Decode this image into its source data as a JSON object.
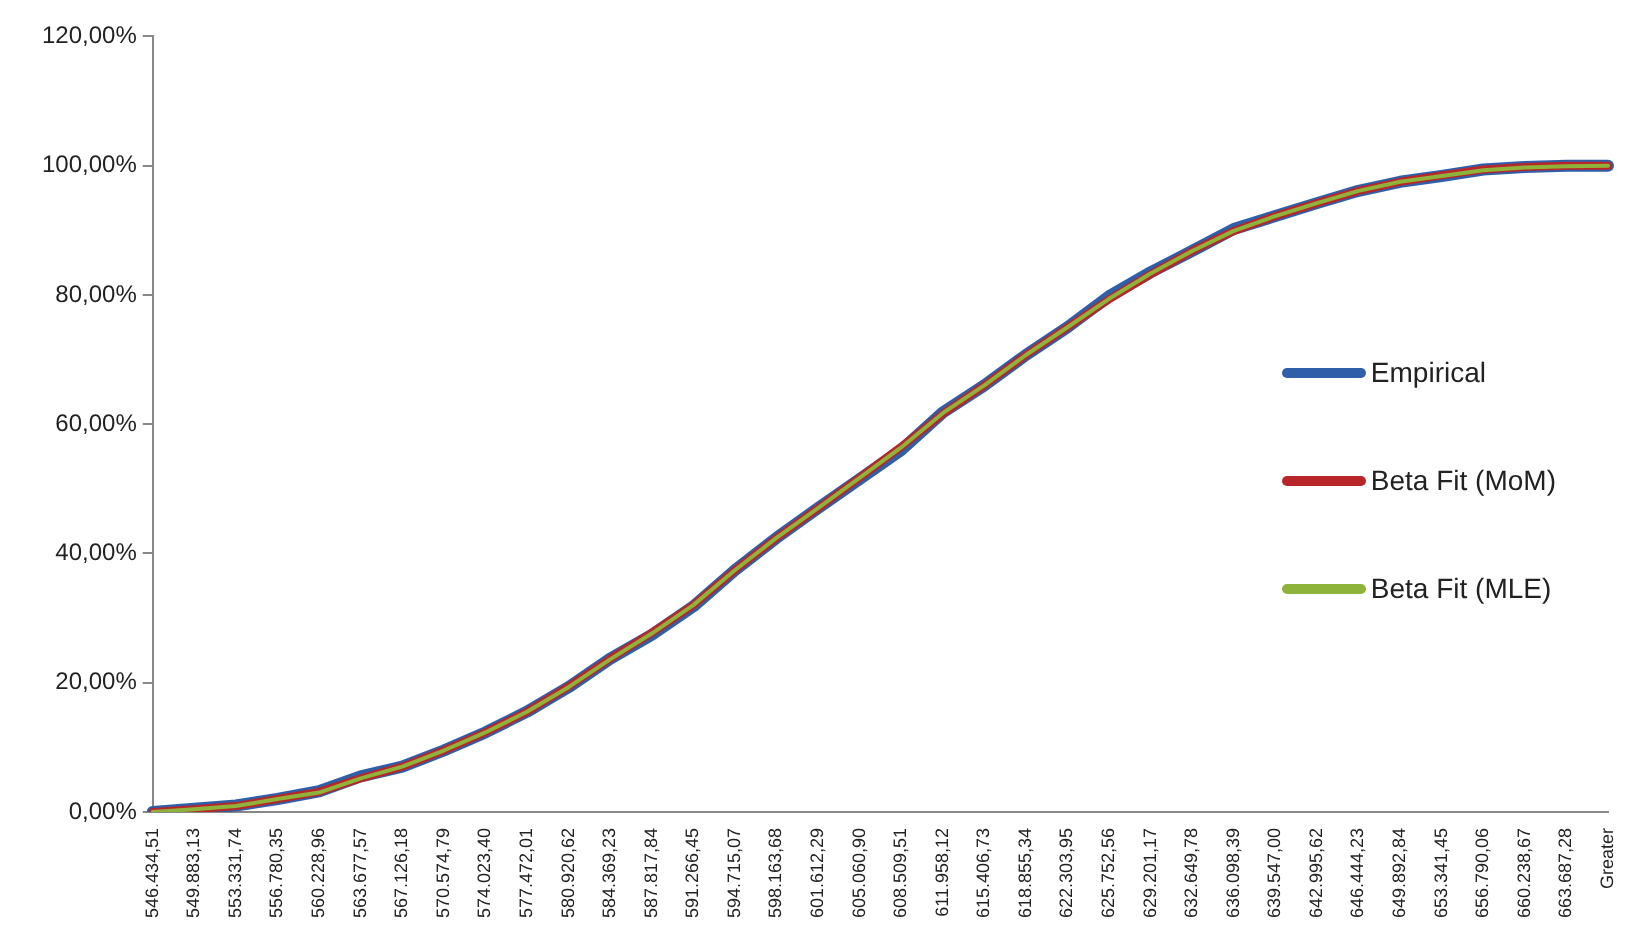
{
  "chart_data": {
    "type": "line",
    "categories": [
      "546.434,51",
      "549.883,13",
      "553.331,74",
      "556.780,35",
      "560.228,96",
      "563.677,57",
      "567.126,18",
      "570.574,79",
      "574.023,40",
      "577.472,01",
      "580.920,62",
      "584.369,23",
      "587.817,84",
      "591.266,45",
      "594.715,07",
      "598.163,68",
      "601.612,29",
      "605.060,90",
      "608.509,51",
      "611.958,12",
      "615.406,73",
      "618.855,34",
      "622.303,95",
      "625.752,56",
      "629.201,17",
      "632.649,78",
      "636.098,39",
      "639.547,00",
      "642.995,62",
      "646.444,23",
      "649.892,84",
      "653.341,45",
      "656.790,06",
      "660.238,67",
      "663.687,28",
      "Greater"
    ],
    "series": [
      {
        "name": "Empirical",
        "color": "#2e5fa8",
        "values": [
          0,
          0.5,
          1,
          2,
          3.2,
          5.5,
          7,
          9.5,
          12.3,
          15.5,
          19.3,
          23.7,
          27.4,
          31.8,
          37.4,
          42.4,
          47,
          51.5,
          56,
          61.8,
          66,
          70.7,
          75,
          79.8,
          83.5,
          86.8,
          90.2,
          92.2,
          94.2,
          96.1,
          97.5,
          98.4,
          99.4,
          99.8,
          100,
          100
        ]
      },
      {
        "name": "Beta Fit (MoM)",
        "color": "#b8262a",
        "values": [
          0,
          0.4,
          0.9,
          2,
          3.1,
          5.2,
          7,
          9.5,
          12.3,
          15.5,
          19.4,
          23.7,
          27.7,
          32,
          37.4,
          42.4,
          47,
          51.7,
          56.5,
          61.6,
          66,
          70.7,
          75,
          79.3,
          83.2,
          86.8,
          89.9,
          92.2,
          94.2,
          96.1,
          97.5,
          98.5,
          99.4,
          99.8,
          100,
          100
        ]
      },
      {
        "name": "Beta Fit (MLE)",
        "color": "#8db33a",
        "values": [
          0,
          0.4,
          0.9,
          2,
          3,
          5.2,
          7,
          9.5,
          12.3,
          15.5,
          19.3,
          23.6,
          27.6,
          32,
          37.4,
          42.4,
          47,
          51.7,
          56.4,
          61.7,
          66,
          70.7,
          75,
          79.4,
          83.3,
          86.8,
          89.9,
          92.2,
          94.2,
          96.1,
          97.5,
          98.4,
          99.3,
          99.7,
          99.9,
          100
        ]
      }
    ],
    "ylim": [
      0,
      120
    ],
    "yticks": [
      {
        "value": 0,
        "label": "0,00%"
      },
      {
        "value": 20,
        "label": "20,00%"
      },
      {
        "value": 40,
        "label": "40,00%"
      },
      {
        "value": 60,
        "label": "60,00%"
      },
      {
        "value": 80,
        "label": "80,00%"
      },
      {
        "value": 100,
        "label": "100,00%"
      },
      {
        "value": 120,
        "label": "120,00%"
      }
    ],
    "grid": false,
    "legend": "right",
    "marker": "none",
    "line_style": "solid"
  }
}
